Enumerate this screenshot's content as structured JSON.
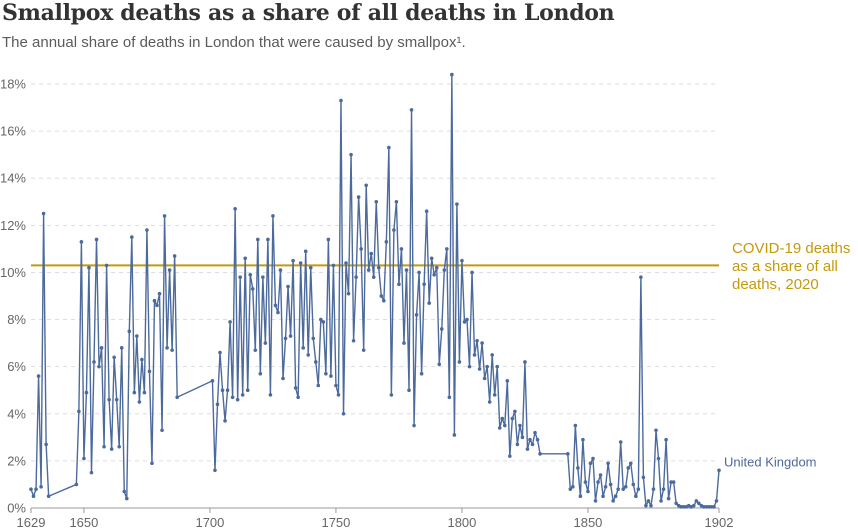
{
  "chart_data": {
    "type": "line",
    "title": "Smallpox deaths as a share of all deaths in London",
    "subtitle": "The annual share of deaths in London that were caused by smallpox¹.",
    "xlabel": "",
    "ylabel": "",
    "xlim": [
      1629,
      1902
    ],
    "ylim": [
      0,
      18
    ],
    "x_ticks": [
      1629,
      1650,
      1700,
      1750,
      1800,
      1850,
      1902
    ],
    "y_ticks": [
      0,
      2,
      4,
      6,
      8,
      10,
      12,
      14,
      16,
      18
    ],
    "y_tick_labels": [
      "0%",
      "2%",
      "4%",
      "6%",
      "8%",
      "10%",
      "12%",
      "14%",
      "16%",
      "18%"
    ],
    "grid": "horizontal",
    "colors": {
      "series": "#4c6a9c",
      "reference": "#c49a0c",
      "axis": "#999999",
      "grid": "#dddddd"
    },
    "reference_line": {
      "value": 10.3,
      "label_lines": [
        "COVID-19 deaths",
        "as a share of all",
        "deaths, 2020"
      ]
    },
    "series": [
      {
        "name": "United Kingdom",
        "points": [
          [
            1629,
            0.8
          ],
          [
            1630,
            0.5
          ],
          [
            1631,
            0.8
          ],
          [
            1632,
            5.6
          ],
          [
            1633,
            0.9
          ],
          [
            1634,
            12.5
          ],
          [
            1635,
            2.7
          ],
          [
            1636,
            0.5
          ],
          [
            1647,
            1.0
          ],
          [
            1648,
            4.1
          ],
          [
            1649,
            11.3
          ],
          [
            1650,
            2.1
          ],
          [
            1651,
            4.9
          ],
          [
            1652,
            10.2
          ],
          [
            1653,
            1.5
          ],
          [
            1654,
            6.2
          ],
          [
            1655,
            11.4
          ],
          [
            1656,
            6.0
          ],
          [
            1657,
            6.8
          ],
          [
            1658,
            2.6
          ],
          [
            1659,
            10.3
          ],
          [
            1660,
            4.6
          ],
          [
            1661,
            2.5
          ],
          [
            1662,
            6.4
          ],
          [
            1663,
            4.6
          ],
          [
            1664,
            2.6
          ],
          [
            1665,
            6.8
          ],
          [
            1666,
            0.7
          ],
          [
            1667,
            0.4
          ],
          [
            1668,
            7.5
          ],
          [
            1669,
            11.5
          ],
          [
            1670,
            4.9
          ],
          [
            1671,
            7.3
          ],
          [
            1672,
            4.5
          ],
          [
            1673,
            6.3
          ],
          [
            1674,
            4.9
          ],
          [
            1675,
            11.8
          ],
          [
            1676,
            5.8
          ],
          [
            1677,
            1.9
          ],
          [
            1678,
            8.8
          ],
          [
            1679,
            8.6
          ],
          [
            1680,
            9.1
          ],
          [
            1681,
            3.3
          ],
          [
            1682,
            12.4
          ],
          [
            1683,
            6.8
          ],
          [
            1684,
            10.1
          ],
          [
            1685,
            6.7
          ],
          [
            1686,
            10.7
          ],
          [
            1687,
            4.7
          ],
          [
            1701,
            5.4
          ],
          [
            1702,
            1.6
          ],
          [
            1703,
            4.4
          ],
          [
            1704,
            6.6
          ],
          [
            1705,
            5.0
          ],
          [
            1706,
            3.7
          ],
          [
            1707,
            5.0
          ],
          [
            1708,
            7.9
          ],
          [
            1709,
            4.7
          ],
          [
            1710,
            12.7
          ],
          [
            1711,
            4.6
          ],
          [
            1712,
            9.8
          ],
          [
            1713,
            4.8
          ],
          [
            1714,
            10.6
          ],
          [
            1715,
            5.0
          ],
          [
            1716,
            9.9
          ],
          [
            1717,
            9.3
          ],
          [
            1718,
            6.7
          ],
          [
            1719,
            11.4
          ],
          [
            1720,
            5.7
          ],
          [
            1721,
            9.8
          ],
          [
            1722,
            7.0
          ],
          [
            1723,
            11.4
          ],
          [
            1724,
            4.8
          ],
          [
            1725,
            12.4
          ],
          [
            1726,
            8.6
          ],
          [
            1727,
            8.3
          ],
          [
            1728,
            10.1
          ],
          [
            1729,
            5.5
          ],
          [
            1730,
            7.2
          ],
          [
            1731,
            9.4
          ],
          [
            1732,
            7.3
          ],
          [
            1733,
            10.5
          ],
          [
            1734,
            5.1
          ],
          [
            1735,
            4.7
          ],
          [
            1736,
            10.4
          ],
          [
            1737,
            6.8
          ],
          [
            1738,
            10.9
          ],
          [
            1739,
            6.5
          ],
          [
            1740,
            10.2
          ],
          [
            1741,
            7.2
          ],
          [
            1742,
            6.2
          ],
          [
            1743,
            5.2
          ],
          [
            1744,
            8.0
          ],
          [
            1745,
            7.9
          ],
          [
            1746,
            5.7
          ],
          [
            1747,
            11.4
          ],
          [
            1748,
            5.6
          ],
          [
            1749,
            10.3
          ],
          [
            1750,
            5.2
          ],
          [
            1751,
            4.8
          ],
          [
            1752,
            17.3
          ],
          [
            1753,
            4.0
          ],
          [
            1754,
            10.4
          ],
          [
            1755,
            9.1
          ],
          [
            1756,
            15.0
          ],
          [
            1757,
            7.1
          ],
          [
            1758,
            9.8
          ],
          [
            1759,
            13.2
          ],
          [
            1760,
            11.0
          ],
          [
            1761,
            6.7
          ],
          [
            1762,
            13.7
          ],
          [
            1763,
            10.1
          ],
          [
            1764,
            10.8
          ],
          [
            1765,
            9.8
          ],
          [
            1766,
            13.0
          ],
          [
            1767,
            10.2
          ],
          [
            1768,
            9.0
          ],
          [
            1769,
            8.8
          ],
          [
            1770,
            11.3
          ],
          [
            1771,
            15.3
          ],
          [
            1772,
            4.8
          ],
          [
            1773,
            11.8
          ],
          [
            1774,
            13.0
          ],
          [
            1775,
            9.5
          ],
          [
            1776,
            11.0
          ],
          [
            1777,
            7.0
          ],
          [
            1778,
            10.1
          ],
          [
            1779,
            5.0
          ],
          [
            1780,
            16.9
          ],
          [
            1781,
            3.5
          ],
          [
            1782,
            8.2
          ],
          [
            1783,
            10.0
          ],
          [
            1784,
            5.7
          ],
          [
            1785,
            9.5
          ],
          [
            1786,
            12.6
          ],
          [
            1787,
            8.7
          ],
          [
            1788,
            10.6
          ],
          [
            1789,
            9.9
          ],
          [
            1790,
            10.2
          ],
          [
            1791,
            6.1
          ],
          [
            1792,
            7.6
          ],
          [
            1793,
            10.1
          ],
          [
            1794,
            11.0
          ],
          [
            1795,
            4.7
          ],
          [
            1796,
            18.4
          ],
          [
            1797,
            3.1
          ],
          [
            1798,
            12.9
          ],
          [
            1799,
            6.2
          ],
          [
            1800,
            10.5
          ],
          [
            1801,
            7.9
          ],
          [
            1802,
            8.0
          ],
          [
            1803,
            6.0
          ],
          [
            1804,
            10.0
          ],
          [
            1805,
            6.5
          ],
          [
            1806,
            7.1
          ],
          [
            1807,
            5.9
          ],
          [
            1808,
            7.0
          ],
          [
            1809,
            5.5
          ],
          [
            1810,
            6.0
          ],
          [
            1811,
            4.5
          ],
          [
            1812,
            6.5
          ],
          [
            1813,
            4.8
          ],
          [
            1814,
            6.0
          ],
          [
            1815,
            3.4
          ],
          [
            1816,
            3.8
          ],
          [
            1817,
            3.5
          ],
          [
            1818,
            5.4
          ],
          [
            1819,
            2.2
          ],
          [
            1820,
            3.8
          ],
          [
            1821,
            4.1
          ],
          [
            1822,
            2.7
          ],
          [
            1823,
            3.5
          ],
          [
            1824,
            3.0
          ],
          [
            1825,
            6.2
          ],
          [
            1826,
            2.5
          ],
          [
            1827,
            2.9
          ],
          [
            1828,
            2.7
          ],
          [
            1829,
            3.2
          ],
          [
            1830,
            2.9
          ],
          [
            1831,
            2.3
          ],
          [
            1842,
            2.3
          ],
          [
            1843,
            0.8
          ],
          [
            1844,
            0.9
          ],
          [
            1845,
            3.5
          ],
          [
            1846,
            1.7
          ],
          [
            1847,
            0.5
          ],
          [
            1848,
            2.9
          ],
          [
            1849,
            1.1
          ],
          [
            1850,
            0.7
          ],
          [
            1851,
            1.9
          ],
          [
            1852,
            2.1
          ],
          [
            1853,
            0.3
          ],
          [
            1854,
            1.1
          ],
          [
            1855,
            1.4
          ],
          [
            1856,
            0.5
          ],
          [
            1857,
            0.9
          ],
          [
            1858,
            1.9
          ],
          [
            1859,
            1.0
          ],
          [
            1860,
            0.3
          ],
          [
            1861,
            0.5
          ],
          [
            1862,
            0.8
          ],
          [
            1863,
            2.8
          ],
          [
            1864,
            0.8
          ],
          [
            1865,
            0.9
          ],
          [
            1866,
            1.7
          ],
          [
            1867,
            1.9
          ],
          [
            1868,
            1.0
          ],
          [
            1869,
            0.5
          ],
          [
            1870,
            0.8
          ],
          [
            1871,
            9.8
          ],
          [
            1872,
            1.3
          ],
          [
            1873,
            0.1
          ],
          [
            1874,
            0.3
          ],
          [
            1875,
            0.1
          ],
          [
            1876,
            0.8
          ],
          [
            1877,
            3.3
          ],
          [
            1878,
            2.1
          ],
          [
            1879,
            0.3
          ],
          [
            1880,
            0.8
          ],
          [
            1881,
            2.9
          ],
          [
            1882,
            0.4
          ],
          [
            1883,
            1.1
          ],
          [
            1884,
            1.1
          ],
          [
            1885,
            0.2
          ],
          [
            1886,
            0.1
          ],
          [
            1887,
            0.05
          ],
          [
            1888,
            0.05
          ],
          [
            1889,
            0.05
          ],
          [
            1890,
            0.1
          ],
          [
            1891,
            0.05
          ],
          [
            1892,
            0.1
          ],
          [
            1893,
            0.3
          ],
          [
            1894,
            0.2
          ],
          [
            1895,
            0.1
          ],
          [
            1896,
            0.05
          ],
          [
            1897,
            0.05
          ],
          [
            1898,
            0.05
          ],
          [
            1899,
            0.05
          ],
          [
            1900,
            0.05
          ],
          [
            1901,
            0.3
          ],
          [
            1902,
            1.6
          ]
        ]
      }
    ]
  }
}
